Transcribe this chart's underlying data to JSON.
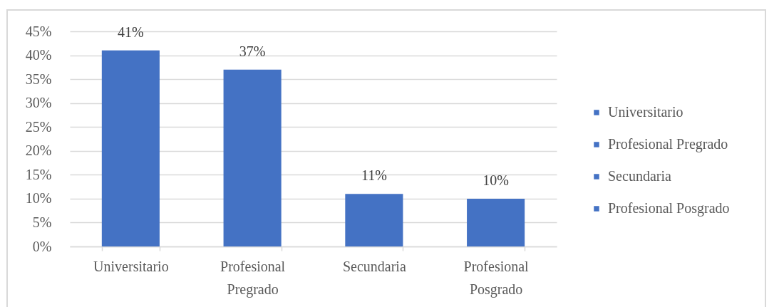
{
  "chart_data": {
    "type": "bar",
    "categories": [
      "Universitario",
      "Profesional Pregrado",
      "Secundaria",
      "Profesional Posgrado"
    ],
    "stacked": true,
    "series": [
      {
        "name": "Universitario",
        "color": "#4472c4",
        "values": [
          41,
          null,
          null,
          null
        ],
        "value_labels": [
          "41%",
          null,
          null,
          null
        ]
      },
      {
        "name": "Profesional Pregrado",
        "color": "#4472c4",
        "values": [
          null,
          37,
          null,
          null
        ],
        "value_labels": [
          null,
          "37%",
          null,
          null
        ]
      },
      {
        "name": "Secundaria",
        "color": "#4472c4",
        "values": [
          null,
          null,
          11,
          null
        ],
        "value_labels": [
          null,
          null,
          "11%",
          null
        ]
      },
      {
        "name": "Profesional Posgrado",
        "color": "#4472c4",
        "values": [
          null,
          null,
          null,
          10
        ],
        "value_labels": [
          null,
          null,
          null,
          "10%"
        ]
      }
    ],
    "ylim": [
      0,
      45
    ],
    "yticks": [
      {
        "value": 0,
        "label": "0%"
      },
      {
        "value": 5,
        "label": "5%"
      },
      {
        "value": 10,
        "label": "10%"
      },
      {
        "value": 15,
        "label": "15%"
      },
      {
        "value": 20,
        "label": "20%"
      },
      {
        "value": 25,
        "label": "25%"
      },
      {
        "value": 30,
        "label": "30%"
      },
      {
        "value": 35,
        "label": "35%"
      },
      {
        "value": 40,
        "label": "40%"
      },
      {
        "value": 45,
        "label": "45%"
      }
    ],
    "grid": "y",
    "legend": "right"
  }
}
